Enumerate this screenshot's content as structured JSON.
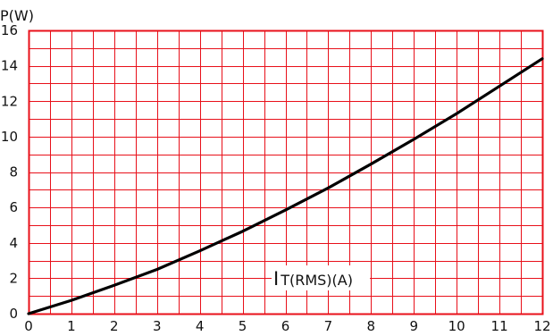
{
  "chart_data": {
    "type": "line",
    "xlabel_prefix": "I",
    "xlabel": "T(RMS)(A)",
    "ylabel": "P(W)",
    "xlim": [
      0,
      12
    ],
    "ylim": [
      0,
      16
    ],
    "grid": true,
    "x_ticks": [
      "0",
      "1",
      "2",
      "3",
      "4",
      "5",
      "6",
      "7",
      "8",
      "9",
      "10",
      "11",
      "12"
    ],
    "y_ticks": [
      "0",
      "2",
      "4",
      "6",
      "8",
      "10",
      "12",
      "14",
      "16"
    ],
    "colors": {
      "grid": "#e8101a",
      "line": "#000000",
      "text": "#111111"
    },
    "series": [
      {
        "x": [
          0,
          1,
          2,
          3,
          4,
          5,
          6,
          7,
          8,
          9,
          10,
          11,
          12
        ],
        "y": [
          0,
          0.75,
          1.6,
          2.5,
          3.55,
          4.65,
          5.85,
          7.1,
          8.45,
          9.85,
          11.3,
          12.85,
          14.4
        ]
      }
    ]
  }
}
